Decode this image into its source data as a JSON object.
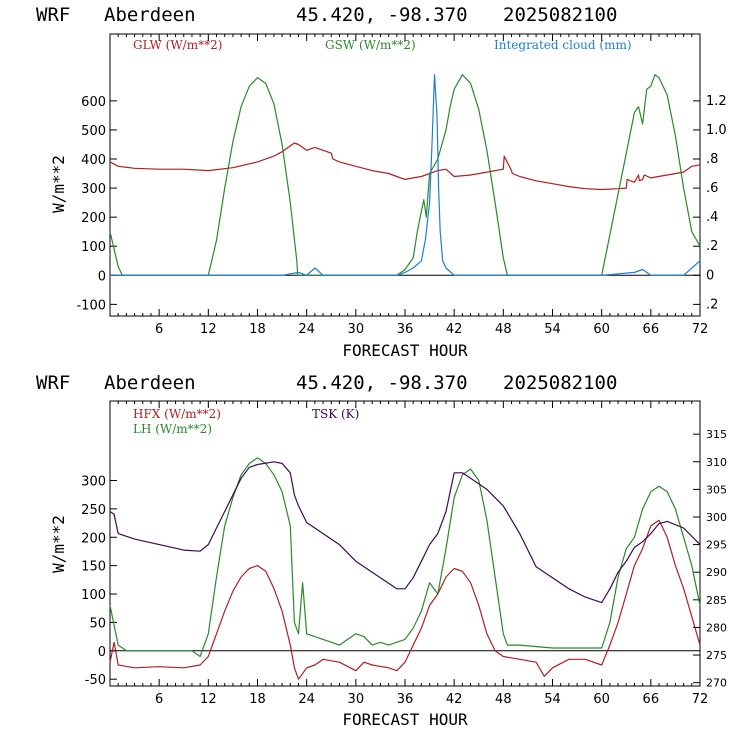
{
  "colors": {
    "red": "#b41e1e",
    "green": "#2a8a2a",
    "blue": "#1e7fd8",
    "purple": "#3c0a50",
    "axis": "#000000"
  },
  "chart_data": [
    {
      "type": "line",
      "header": {
        "model": "WRF",
        "station": "Aberdeen",
        "coords": "45.420, -98.370",
        "init": "2025082100"
      },
      "xlabel": "FORECAST HOUR",
      "ylabel": "W/m**2",
      "xlim": [
        0,
        72
      ],
      "xticks": [
        6,
        12,
        18,
        24,
        30,
        36,
        42,
        48,
        54,
        60,
        66,
        72
      ],
      "ylim": [
        -140,
        830
      ],
      "yticks": [
        -100,
        0,
        100,
        200,
        300,
        400,
        500,
        600
      ],
      "y2lim": [
        -0.28,
        1.66
      ],
      "y2ticks": [
        -0.2,
        0,
        0.2,
        0.4,
        0.6,
        0.8,
        1.0,
        1.2
      ],
      "y2ticklabels": [
        ".2",
        "0",
        ".2",
        ".4",
        ".6",
        ".8",
        "1.0",
        "1.2"
      ],
      "legend": [
        "GLW (W/m**2)",
        "GSW (W/m**2)",
        "Integrated cloud (mm)"
      ],
      "series": [
        {
          "name": "GLW (W/m**2)",
          "axis": "left",
          "color": "#b41e1e",
          "x": [
            0,
            1,
            3,
            6,
            9,
            12,
            15,
            18,
            20,
            21,
            22,
            22.5,
            23,
            24,
            25,
            26,
            27,
            27.2,
            28,
            30,
            32,
            34,
            35,
            36,
            37,
            38,
            39,
            40,
            41,
            42,
            44,
            46,
            48,
            48.1,
            49,
            49.1,
            50,
            52,
            54,
            56,
            58,
            60,
            62,
            63,
            63.1,
            64,
            64.5,
            64.6,
            65,
            65.2,
            66,
            68,
            70,
            71,
            72
          ],
          "y": [
            390,
            375,
            368,
            365,
            365,
            360,
            370,
            390,
            410,
            425,
            445,
            455,
            450,
            430,
            440,
            430,
            420,
            400,
            390,
            375,
            360,
            350,
            340,
            330,
            335,
            340,
            350,
            360,
            365,
            340,
            345,
            355,
            365,
            410,
            360,
            350,
            340,
            325,
            315,
            305,
            298,
            295,
            298,
            300,
            330,
            320,
            345,
            325,
            330,
            345,
            335,
            345,
            355,
            375,
            380
          ]
        },
        {
          "name": "GSW (W/m**2)",
          "axis": "left",
          "color": "#2a8a2a",
          "x": [
            0,
            1,
            1.5,
            12,
            13,
            14,
            15,
            16,
            17,
            18,
            19,
            20,
            21,
            22,
            22.8,
            22.9,
            24,
            30,
            35,
            36,
            37,
            37.5,
            38,
            38.3,
            38.6,
            39,
            40,
            41,
            41.5,
            42,
            43,
            44,
            45,
            46,
            47,
            48,
            48.5,
            60,
            61,
            62,
            63,
            64,
            64.5,
            65,
            65.5,
            66,
            66.5,
            67,
            68,
            69,
            70,
            71,
            72
          ],
          "y": [
            150,
            30,
            0,
            0,
            120,
            300,
            460,
            580,
            650,
            680,
            660,
            590,
            450,
            250,
            50,
            0,
            0,
            0,
            0,
            20,
            60,
            150,
            220,
            260,
            200,
            350,
            400,
            500,
            580,
            640,
            690,
            660,
            570,
            430,
            250,
            60,
            0,
            0,
            140,
            280,
            420,
            560,
            580,
            520,
            640,
            650,
            690,
            680,
            620,
            480,
            300,
            150,
            100
          ]
        },
        {
          "name": "Integrated cloud (mm)",
          "axis": "right",
          "color": "#1e7fd8",
          "x": [
            0,
            21,
            22,
            23,
            24,
            25,
            26,
            35,
            36,
            37,
            38,
            38.5,
            39,
            39.3,
            39.6,
            39.9,
            40.1,
            40.3,
            40.6,
            41,
            42,
            48,
            60,
            64,
            65,
            66,
            70,
            71,
            72
          ],
          "y": [
            0,
            0,
            0.01,
            0.02,
            0,
            0.05,
            0,
            0,
            0.02,
            0.05,
            0.1,
            0.25,
            0.5,
            0.9,
            1.38,
            1.1,
            0.6,
            0.3,
            0.1,
            0.05,
            0,
            0,
            0,
            0.02,
            0.04,
            0,
            0,
            0.05,
            0.1
          ]
        }
      ]
    },
    {
      "type": "line",
      "header": {
        "model": "WRF",
        "station": "Aberdeen",
        "coords": "45.420, -98.370",
        "init": "2025082100"
      },
      "xlabel": "FORECAST HOUR",
      "ylabel": "W/m**2",
      "xlim": [
        0,
        72
      ],
      "xticks": [
        6,
        12,
        18,
        24,
        30,
        36,
        42,
        48,
        54,
        60,
        66,
        72
      ],
      "ylim": [
        -62,
        440
      ],
      "yticks": [
        -50,
        0,
        50,
        100,
        150,
        200,
        250,
        300
      ],
      "y2lim": [
        269.4,
        321.0
      ],
      "y2ticks": [
        270,
        275,
        280,
        285,
        290,
        295,
        300,
        305,
        310,
        315
      ],
      "legend": [
        "HFX (W/m**2)",
        "LH (W/m**2)",
        "TSK (K)"
      ],
      "series": [
        {
          "name": "HFX (W/m**2)",
          "axis": "left",
          "color": "#b41e1e",
          "x": [
            0,
            0.5,
            1,
            3,
            6,
            9,
            11,
            12,
            13,
            14,
            15,
            16,
            17,
            18,
            19,
            20,
            21,
            22,
            22.5,
            23,
            24,
            25,
            26,
            28,
            30,
            31,
            32,
            34,
            35,
            36,
            37,
            38,
            39,
            40,
            41,
            42,
            43,
            44,
            45,
            46,
            47,
            48,
            50,
            52,
            53,
            54,
            56,
            58,
            60,
            61,
            62,
            63,
            64,
            65,
            66,
            67,
            68,
            69,
            70,
            71,
            72
          ],
          "y": [
            -20,
            15,
            -25,
            -30,
            -28,
            -30,
            -25,
            -10,
            30,
            70,
            105,
            130,
            145,
            150,
            140,
            110,
            70,
            10,
            -30,
            -50,
            -30,
            -25,
            -15,
            -20,
            -35,
            -20,
            -25,
            -30,
            -35,
            -20,
            10,
            40,
            80,
            100,
            130,
            145,
            140,
            120,
            80,
            30,
            0,
            -10,
            -15,
            -20,
            -45,
            -30,
            -15,
            -15,
            -25,
            10,
            50,
            100,
            150,
            180,
            220,
            230,
            200,
            150,
            110,
            60,
            10
          ]
        },
        {
          "name": "LH (W/m**2)",
          "axis": "left",
          "color": "#2a8a2a",
          "x": [
            0,
            1,
            2,
            6,
            10,
            11,
            12,
            13,
            14,
            15,
            16,
            17,
            18,
            19,
            20,
            21,
            22,
            22.5,
            23,
            23.5,
            24,
            26,
            28,
            29,
            30,
            31,
            32,
            33,
            34,
            36,
            37,
            38,
            39,
            40,
            41,
            42,
            43,
            44,
            45,
            46,
            47,
            48,
            48.5,
            50,
            54,
            58,
            60,
            61,
            62,
            63,
            64,
            65,
            66,
            67,
            68,
            69,
            70,
            71,
            72
          ],
          "y": [
            80,
            10,
            0,
            0,
            0,
            -10,
            30,
            130,
            220,
            270,
            310,
            330,
            340,
            330,
            310,
            280,
            220,
            50,
            30,
            120,
            30,
            20,
            10,
            20,
            30,
            25,
            10,
            15,
            10,
            20,
            40,
            70,
            120,
            100,
            180,
            270,
            310,
            320,
            300,
            230,
            130,
            30,
            10,
            10,
            5,
            5,
            5,
            50,
            130,
            180,
            200,
            250,
            280,
            290,
            280,
            250,
            200,
            150,
            80
          ]
        },
        {
          "name": "TSK (K)",
          "axis": "right",
          "color": "#3c0a50",
          "x": [
            0,
            0.5,
            1,
            3,
            6,
            9,
            11,
            12,
            13,
            14,
            15,
            16,
            17,
            18,
            20,
            21,
            22,
            22.5,
            23,
            24,
            26,
            28,
            30,
            32,
            34,
            35,
            36,
            37,
            38,
            39,
            40,
            41,
            42,
            43,
            44,
            46,
            48,
            50,
            52,
            54,
            56,
            58,
            60,
            61,
            62,
            63,
            64,
            65,
            66,
            67,
            68,
            70,
            72
          ],
          "y": [
            301,
            300.5,
            297,
            296,
            295,
            294,
            293.8,
            295,
            298,
            301,
            304,
            307,
            309,
            309.5,
            310,
            309.7,
            308,
            304,
            302,
            299,
            297,
            295,
            292,
            290,
            288,
            287,
            287,
            289,
            292,
            295,
            297,
            301,
            308,
            308,
            307,
            305,
            302,
            297,
            291,
            289,
            287,
            285.5,
            284.5,
            287,
            290,
            292,
            294.5,
            295.5,
            297,
            298.8,
            299.2,
            298,
            295
          ]
        }
      ]
    }
  ]
}
